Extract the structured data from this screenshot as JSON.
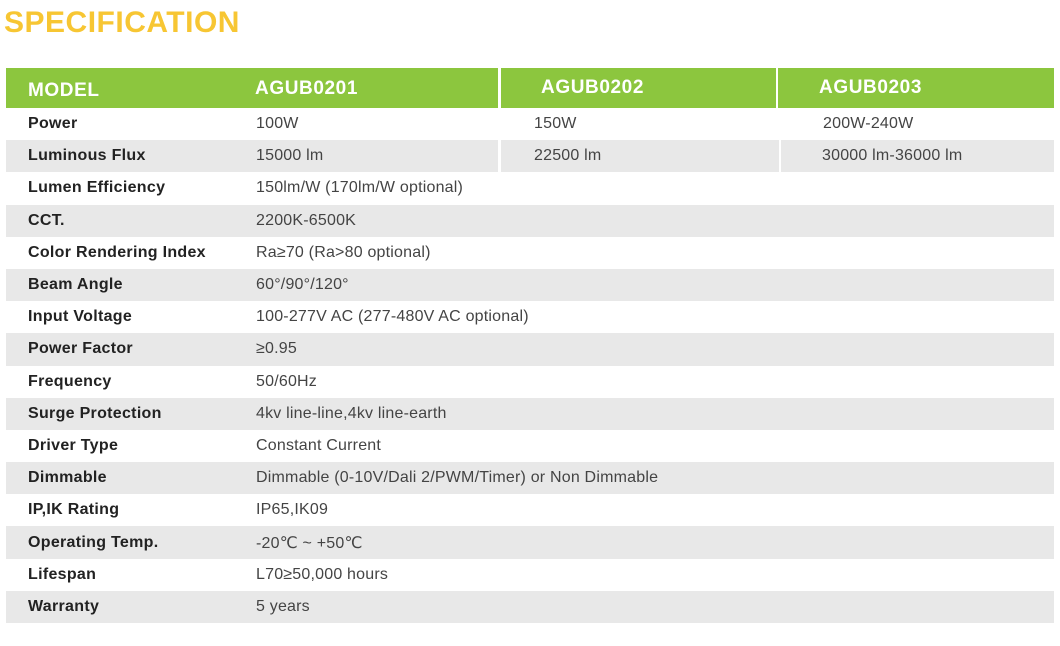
{
  "title": "SPECIFICATION",
  "header": {
    "model": "MODEL",
    "models": [
      "AGUB0201",
      "AGUB0202",
      "AGUB0203"
    ]
  },
  "rows": [
    {
      "label": "Power",
      "values": [
        "100W",
        "150W",
        "200W-240W"
      ]
    },
    {
      "label": "Luminous Flux",
      "values": [
        "15000 lm",
        "22500 lm",
        "30000 lm-36000 lm"
      ]
    },
    {
      "label": "Lumen Efficiency",
      "value": "150lm/W (170lm/W optional)"
    },
    {
      "label": "CCT.",
      "value": "2200K-6500K"
    },
    {
      "label": "Color Rendering Index",
      "value": "Ra≥70 (Ra>80 optional)"
    },
    {
      "label": "Beam Angle",
      "value": "60°/90°/120°"
    },
    {
      "label": "Input Voltage",
      "value": "100-277V AC (277-480V AC optional)"
    },
    {
      "label": "Power Factor",
      "value": "≥0.95"
    },
    {
      "label": "Frequency",
      "value": "50/60Hz"
    },
    {
      "label": "Surge Protection",
      "value": "4kv line-line,4kv line-earth"
    },
    {
      "label": "Driver Type",
      "value": "Constant Current"
    },
    {
      "label": "Dimmable",
      "value": "Dimmable (0-10V/Dali 2/PWM/Timer) or Non Dimmable"
    },
    {
      "label": "IP,IK Rating",
      "value": "IP65,IK09"
    },
    {
      "label": "Operating Temp.",
      "value": "-20℃ ~ +50℃"
    },
    {
      "label": "Lifespan",
      "value": "L70≥50,000 hours"
    },
    {
      "label": "Warranty",
      "value": "5 years"
    }
  ],
  "colors": {
    "title": "#f7c633",
    "header_bg": "#8cc63e",
    "row_shade": "#e8e8e8"
  }
}
